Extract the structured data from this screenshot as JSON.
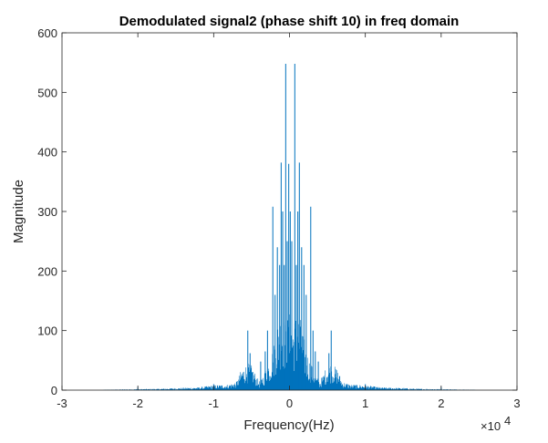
{
  "chart_data": {
    "type": "line",
    "title": "Demodulated signal2 (phase shift 10) in freq domain",
    "xlabel": "Frequency(Hz)",
    "ylabel": "Magnitude",
    "x_exponent_label": "×10",
    "x_exponent_power": "4",
    "xlim": [
      -3,
      3
    ],
    "ylim": [
      0,
      600
    ],
    "x_ticks": [
      -3,
      -2,
      -1,
      0,
      1,
      2,
      3
    ],
    "x_tick_labels": [
      "-3",
      "-2",
      "-1",
      "0",
      "1",
      "2",
      "3"
    ],
    "y_ticks": [
      0,
      100,
      200,
      300,
      400,
      500,
      600
    ],
    "y_tick_labels": [
      "0",
      "100",
      "200",
      "300",
      "400",
      "500",
      "600"
    ],
    "grid": false,
    "line_color": "#0072BD",
    "series": [
      {
        "values_description": "symmetric magnitude spectrum, x in units of 10^4 Hz",
        "envelope": [
          {
            "x": -2.45,
            "y": 0.5
          },
          {
            "x": -2.0,
            "y": 1.5
          },
          {
            "x": -1.7,
            "y": 2
          },
          {
            "x": -1.5,
            "y": 3
          },
          {
            "x": -1.2,
            "y": 4
          },
          {
            "x": -1.0,
            "y": 7
          },
          {
            "x": -0.8,
            "y": 8
          },
          {
            "x": -0.7,
            "y": 12
          },
          {
            "x": -0.63,
            "y": 30
          },
          {
            "x": -0.55,
            "y": 38
          },
          {
            "x": -0.5,
            "y": 35
          },
          {
            "x": -0.45,
            "y": 24
          },
          {
            "x": -0.4,
            "y": 12
          },
          {
            "x": -0.35,
            "y": 20
          },
          {
            "x": -0.3,
            "y": 35
          },
          {
            "x": -0.25,
            "y": 45
          },
          {
            "x": -0.2,
            "y": 70
          },
          {
            "x": -0.15,
            "y": 100
          },
          {
            "x": -0.1,
            "y": 115
          },
          {
            "x": -0.05,
            "y": 95
          },
          {
            "x": 0.0,
            "y": 110
          },
          {
            "x": 0.05,
            "y": 95
          },
          {
            "x": 0.1,
            "y": 115
          },
          {
            "x": 0.15,
            "y": 100
          },
          {
            "x": 0.2,
            "y": 70
          },
          {
            "x": 0.25,
            "y": 45
          },
          {
            "x": 0.3,
            "y": 35
          },
          {
            "x": 0.35,
            "y": 20
          },
          {
            "x": 0.4,
            "y": 12
          },
          {
            "x": 0.45,
            "y": 24
          },
          {
            "x": 0.5,
            "y": 35
          },
          {
            "x": 0.55,
            "y": 38
          },
          {
            "x": 0.63,
            "y": 30
          },
          {
            "x": 0.7,
            "y": 12
          },
          {
            "x": 0.8,
            "y": 8
          },
          {
            "x": 1.0,
            "y": 7
          },
          {
            "x": 1.2,
            "y": 4
          },
          {
            "x": 1.5,
            "y": 3
          },
          {
            "x": 1.7,
            "y": 2
          },
          {
            "x": 2.0,
            "y": 1.5
          },
          {
            "x": 2.45,
            "y": 0.5
          }
        ],
        "peaks": [
          {
            "x": -2.0,
            "y": 5
          },
          {
            "x": -1.0,
            "y": 10
          },
          {
            "x": -0.55,
            "y": 100
          },
          {
            "x": -0.52,
            "y": 62
          },
          {
            "x": -0.38,
            "y": 48
          },
          {
            "x": -0.32,
            "y": 65
          },
          {
            "x": -0.29,
            "y": 100
          },
          {
            "x": -0.22,
            "y": 308
          },
          {
            "x": -0.19,
            "y": 160
          },
          {
            "x": -0.16,
            "y": 240
          },
          {
            "x": -0.13,
            "y": 210
          },
          {
            "x": -0.11,
            "y": 382
          },
          {
            "x": -0.09,
            "y": 300
          },
          {
            "x": -0.07,
            "y": 210
          },
          {
            "x": -0.05,
            "y": 548
          },
          {
            "x": -0.03,
            "y": 250
          },
          {
            "x": -0.01,
            "y": 380
          },
          {
            "x": 0.01,
            "y": 300
          },
          {
            "x": 0.03,
            "y": 250
          },
          {
            "x": 0.07,
            "y": 548
          },
          {
            "x": 0.09,
            "y": 210
          },
          {
            "x": 0.11,
            "y": 300
          },
          {
            "x": 0.13,
            "y": 382
          },
          {
            "x": 0.16,
            "y": 240
          },
          {
            "x": 0.19,
            "y": 210
          },
          {
            "x": 0.22,
            "y": 160
          },
          {
            "x": 0.28,
            "y": 308
          },
          {
            "x": 0.31,
            "y": 100
          },
          {
            "x": 0.34,
            "y": 65
          },
          {
            "x": 0.38,
            "y": 48
          },
          {
            "x": 0.52,
            "y": 62
          },
          {
            "x": 0.55,
            "y": 100
          },
          {
            "x": 1.0,
            "y": 10
          },
          {
            "x": 2.0,
            "y": 5
          }
        ]
      }
    ]
  }
}
